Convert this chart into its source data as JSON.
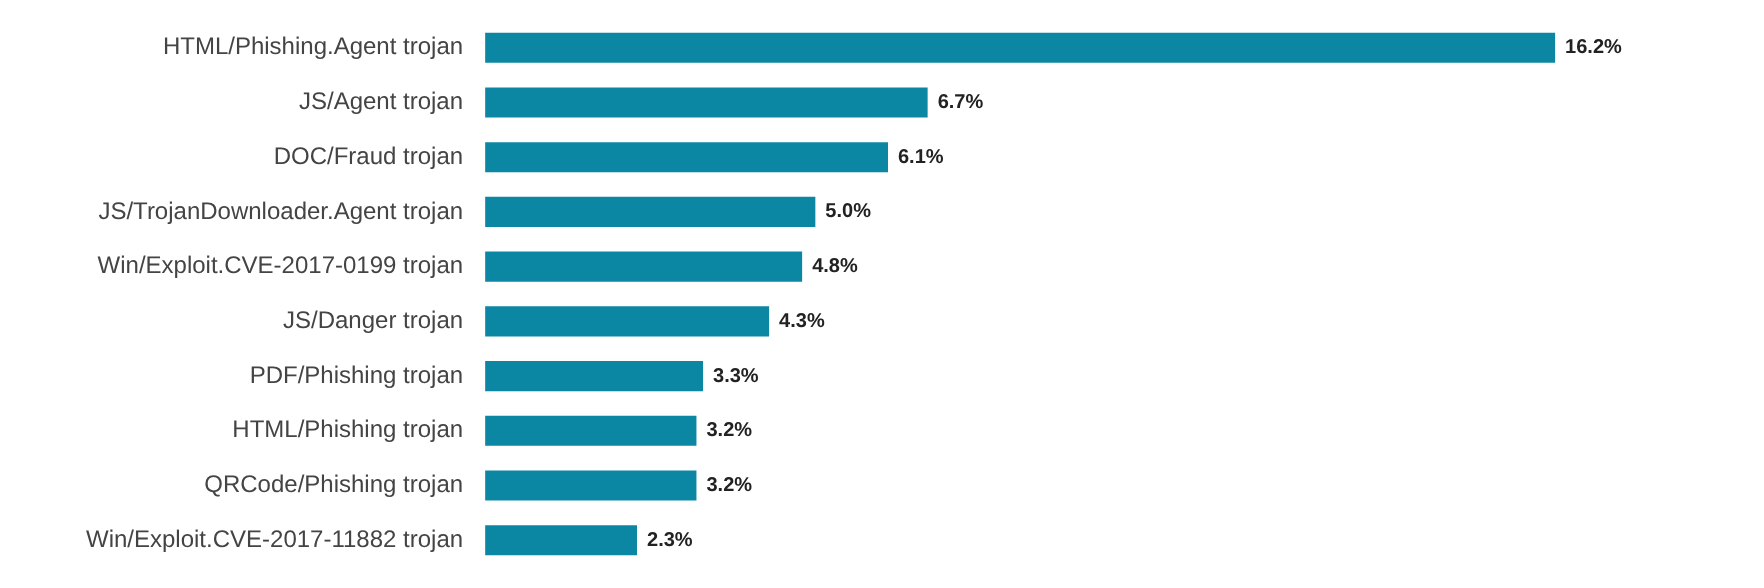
{
  "chart_data": {
    "type": "bar",
    "orientation": "horizontal",
    "categories": [
      "HTML/Phishing.Agent trojan",
      "JS/Agent trojan",
      "DOC/Fraud trojan",
      "JS/TrojanDownloader.Agent trojan",
      "Win/Exploit.CVE-2017-0199 trojan",
      "JS/Danger trojan",
      "PDF/Phishing trojan",
      "HTML/Phishing trojan",
      "QRCode/Phishing trojan",
      "Win/Exploit.CVE-2017-11882 trojan"
    ],
    "values": [
      16.2,
      6.7,
      6.1,
      5.0,
      4.8,
      4.3,
      3.3,
      3.2,
      3.2,
      2.3
    ],
    "value_labels": [
      "16.2%",
      "6.7%",
      "6.1%",
      "5.0%",
      "4.8%",
      "4.3%",
      "3.3%",
      "3.2%",
      "3.2%",
      "2.3%"
    ],
    "color": "#0b87a3",
    "tick_labels": "y",
    "legend": false
  }
}
